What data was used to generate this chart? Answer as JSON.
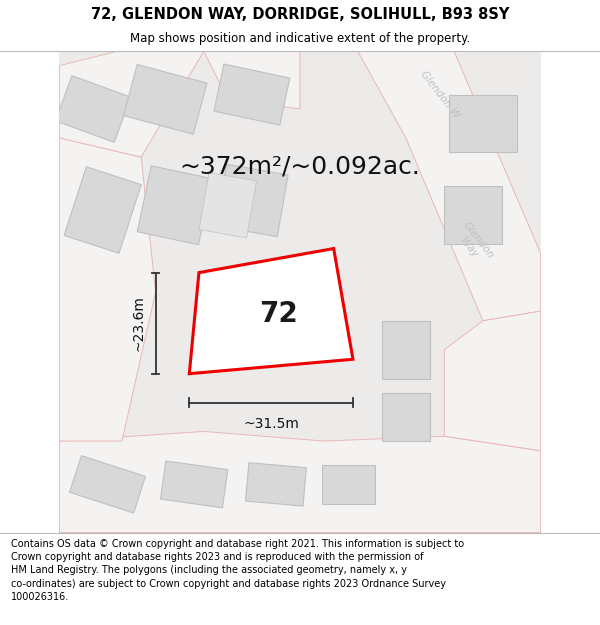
{
  "title": "72, GLENDON WAY, DORRIDGE, SOLIHULL, B93 8SY",
  "subtitle": "Map shows position and indicative extent of the property.",
  "footer_line1": "Contains OS data © Crown copyright and database right 2021. This information is subject to",
  "footer_line2": "Crown copyright and database rights 2023 and is reproduced with the permission of",
  "footer_line3": "HM Land Registry. The polygons (including the associated geometry, namely x, y",
  "footer_line4": "co-ordinates) are subject to Crown copyright and database rights 2023 Ordnance Survey",
  "footer_line5": "100026316.",
  "area_text": "~372m²/~0.092ac.",
  "property_label": "72",
  "dim_width": "~31.5m",
  "dim_height": "~23.6m",
  "map_bg": "#edeaea",
  "road_fill": "#f5f2f2",
  "road_stroke": "#e8b8b8",
  "building_fill": "#d8d8d8",
  "building_edge": "#c0c0c0",
  "property_fill": "#ffffff",
  "property_stroke": "#ee0000",
  "street_label_color": "#c0c0c0",
  "title_fontsize": 10.5,
  "subtitle_fontsize": 8.5,
  "footer_fontsize": 7.0,
  "area_fontsize": 18,
  "property_label_fontsize": 20,
  "dim_fontsize": 10
}
